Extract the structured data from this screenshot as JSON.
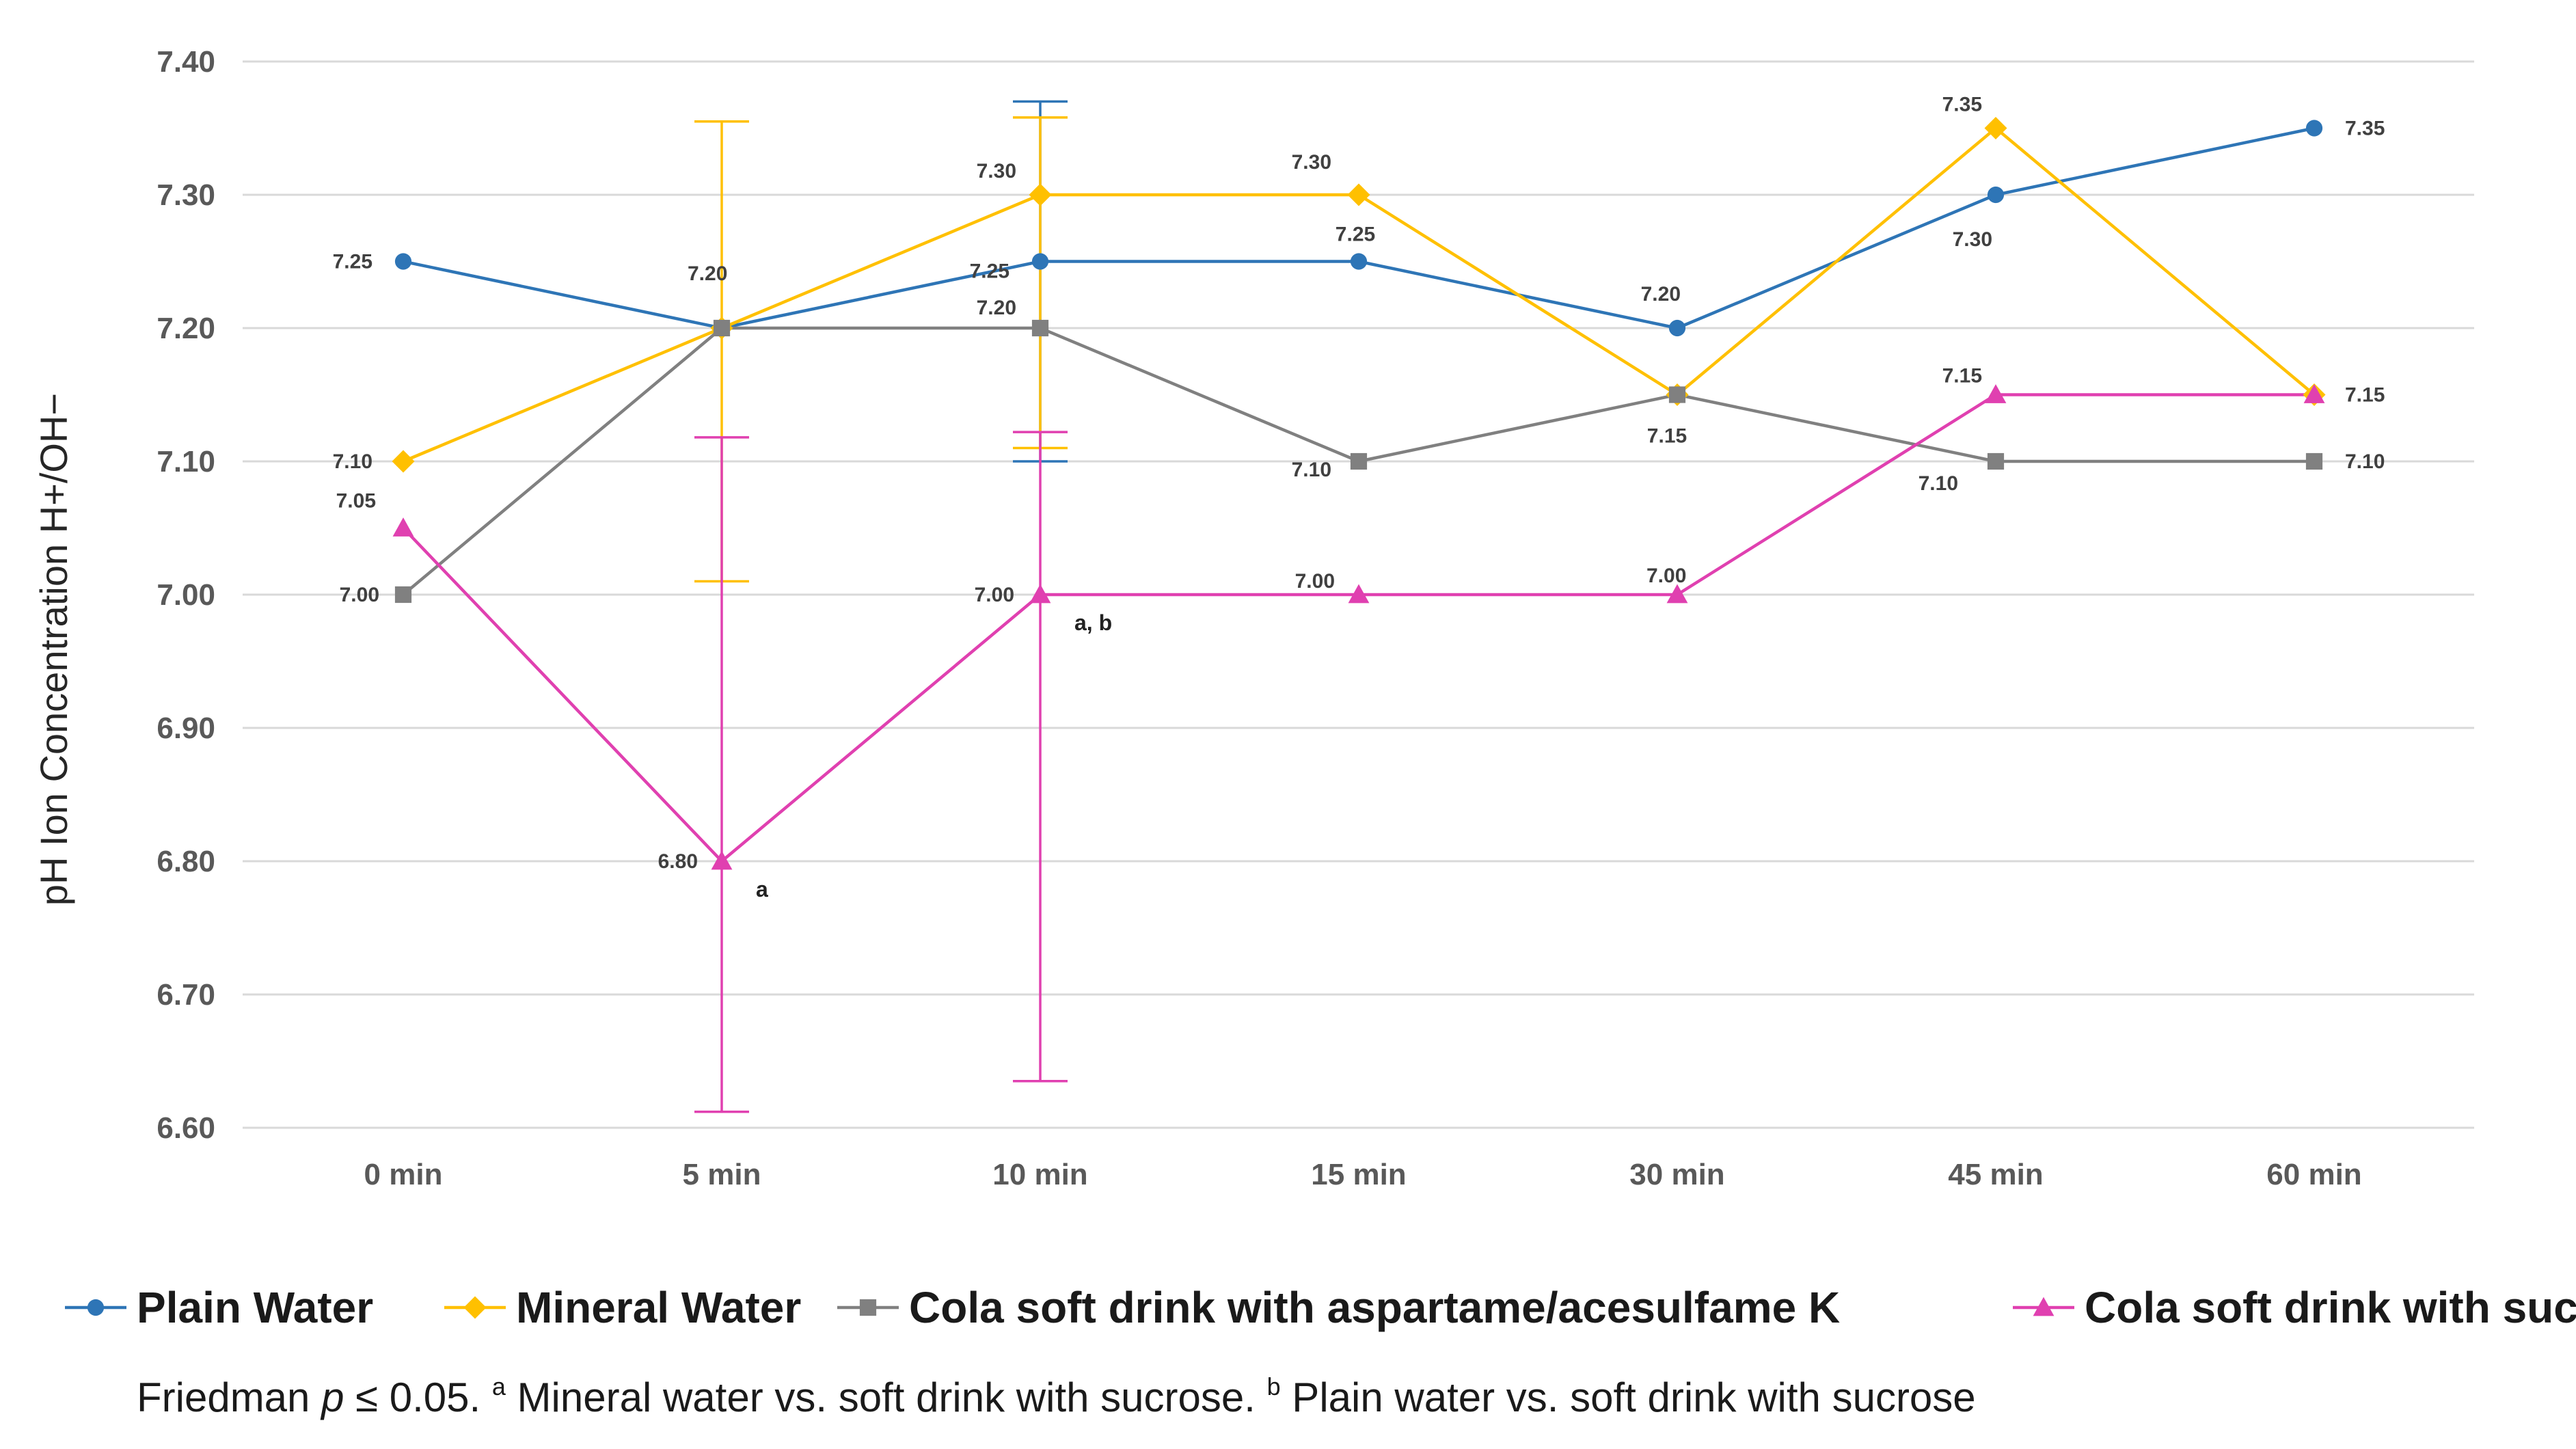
{
  "chart_data": {
    "type": "line",
    "title": "",
    "xlabel": "",
    "ylabel": "pH Ion Concentration H+/OH−",
    "ylim": [
      6.6,
      7.4
    ],
    "y_ticks": [
      6.6,
      6.7,
      6.8,
      6.9,
      7.0,
      7.1,
      7.2,
      7.3,
      7.4
    ],
    "y_tick_labels": [
      "6.60",
      "6.70",
      "6.80",
      "6.90",
      "7.00",
      "7.10",
      "7.20",
      "7.30",
      "7.40"
    ],
    "grid": true,
    "legend_position": "bottom",
    "categories": [
      "0 min",
      "5 min",
      "10 min",
      "15 min",
      "30 min",
      "45 min",
      "60 min"
    ],
    "series": [
      {
        "name": "Plain Water",
        "color": "#2e75b6",
        "marker": "circle",
        "values": [
          7.25,
          7.2,
          7.25,
          7.25,
          7.2,
          7.3,
          7.35
        ],
        "labels": [
          "7.25",
          "",
          "7.25",
          "7.25",
          "7.20",
          "7.30",
          "7.35"
        ],
        "error_bars": [
          null,
          null,
          [
            7.1,
            7.37
          ],
          null,
          null,
          null,
          null
        ]
      },
      {
        "name": "Mineral Water",
        "color": "#ffc000",
        "marker": "diamond",
        "values": [
          7.1,
          7.2,
          7.3,
          7.3,
          7.15,
          7.35,
          7.15
        ],
        "labels": [
          "7.10",
          "",
          "7.30",
          "7.30",
          "7.15",
          "7.35",
          "7.15"
        ],
        "error_bars": [
          null,
          [
            7.01,
            7.355
          ],
          [
            7.11,
            7.358
          ],
          null,
          null,
          null,
          null
        ]
      },
      {
        "name": "Cola soft drink with aspartame/acesulfame K",
        "color": "#808080",
        "marker": "square",
        "values": [
          7.0,
          7.2,
          7.2,
          7.1,
          7.15,
          7.1,
          7.1
        ],
        "labels": [
          "7.00",
          "7.20",
          "7.20",
          "7.10",
          "",
          "7.10",
          "7.10"
        ],
        "error_bars": [
          null,
          null,
          null,
          null,
          null,
          null,
          null
        ]
      },
      {
        "name": "Cola soft drink with sucrose",
        "color": "#e040b0",
        "marker": "triangle",
        "values": [
          7.05,
          6.8,
          7.0,
          7.0,
          7.0,
          7.15,
          7.15
        ],
        "labels": [
          "7.05",
          "6.80",
          "7.00",
          "7.00",
          "7.00",
          "7.15",
          ""
        ],
        "error_bars": [
          null,
          [
            6.612,
            7.118
          ],
          [
            6.635,
            7.122
          ],
          null,
          null,
          null,
          null
        ]
      }
    ],
    "annotations": [
      {
        "category_index": 1,
        "text": "a"
      },
      {
        "category_index": 2,
        "text": "a, b"
      }
    ],
    "footnote": {
      "prefix": "Friedman ",
      "p": "p",
      "rest": " ≤ 0.05. ",
      "sup_a": "a",
      "text_a": " Mineral water vs. soft drink with sucrose. ",
      "sup_b": "b",
      "text_b": " Plain water vs. soft drink with sucrose"
    }
  }
}
